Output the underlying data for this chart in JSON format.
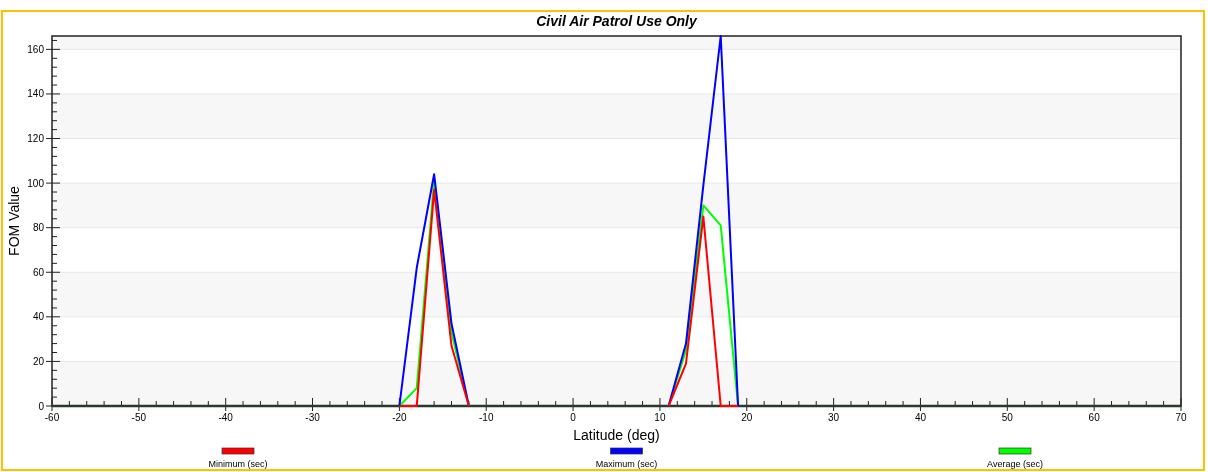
{
  "chart_data": {
    "type": "line",
    "title": "Civil Air Patrol Use Only",
    "xlabel": "Latitude (deg)",
    "ylabel": "FOM Value",
    "x": [
      -20,
      -18,
      -16,
      -14,
      -12,
      0,
      11,
      13,
      15,
      17,
      19
    ],
    "series": [
      {
        "name": "Minimum (sec)",
        "color": "#ff0000",
        "values": [
          0,
          0,
          97,
          27,
          0,
          null,
          0,
          19,
          85,
          0,
          0
        ]
      },
      {
        "name": "Maximum (sec)",
        "color": "#0000ff",
        "values": [
          0,
          62,
          104,
          37,
          0,
          null,
          0,
          28,
          99,
          166,
          0
        ]
      },
      {
        "name": "Average (sec)",
        "color": "#00ff00",
        "values": [
          0,
          8,
          101,
          33,
          0,
          null,
          0,
          25,
          90,
          81,
          0
        ]
      }
    ],
    "xlim": [
      -60,
      70
    ],
    "xticks": [
      -60,
      -50,
      -40,
      -30,
      -20,
      -10,
      0,
      10,
      20,
      30,
      40,
      50,
      60,
      70
    ],
    "ylim": [
      0,
      166
    ],
    "yticks": [
      0,
      20,
      40,
      60,
      80,
      100,
      120,
      140,
      160
    ],
    "grid": "y",
    "legend": "bottom",
    "marker": "none",
    "line_style": "solid"
  }
}
